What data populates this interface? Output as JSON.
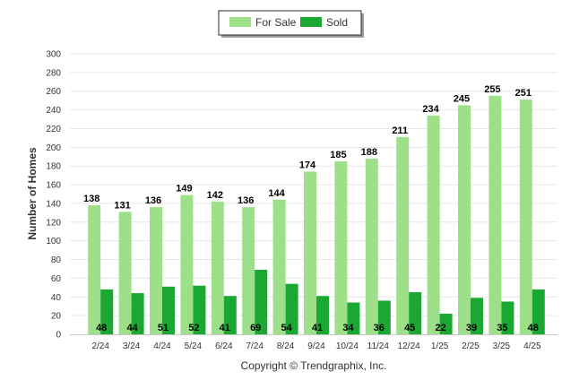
{
  "chart_data": {
    "type": "bar",
    "title": "",
    "xlabel": "",
    "ylabel": "Number of Homes",
    "ylim": [
      0,
      300
    ],
    "yticks": [
      0,
      20,
      40,
      60,
      80,
      100,
      120,
      140,
      160,
      180,
      200,
      220,
      240,
      260,
      280,
      300
    ],
    "grid": true,
    "legend_position": "top-center",
    "categories": [
      "2/24",
      "3/24",
      "4/24",
      "5/24",
      "6/24",
      "7/24",
      "8/24",
      "9/24",
      "10/24",
      "11/24",
      "12/24",
      "1/25",
      "2/25",
      "3/25",
      "4/25"
    ],
    "series": [
      {
        "name": "For Sale",
        "color": "#9ee089",
        "values": [
          138,
          131,
          136,
          149,
          142,
          136,
          144,
          174,
          185,
          188,
          211,
          234,
          245,
          255,
          251
        ]
      },
      {
        "name": "Sold",
        "color": "#1aa832",
        "values": [
          48,
          44,
          51,
          52,
          41,
          69,
          54,
          41,
          34,
          36,
          45,
          22,
          39,
          35,
          48
        ]
      }
    ]
  },
  "footer": {
    "copyright": "Copyright © Trendgraphix, Inc."
  }
}
